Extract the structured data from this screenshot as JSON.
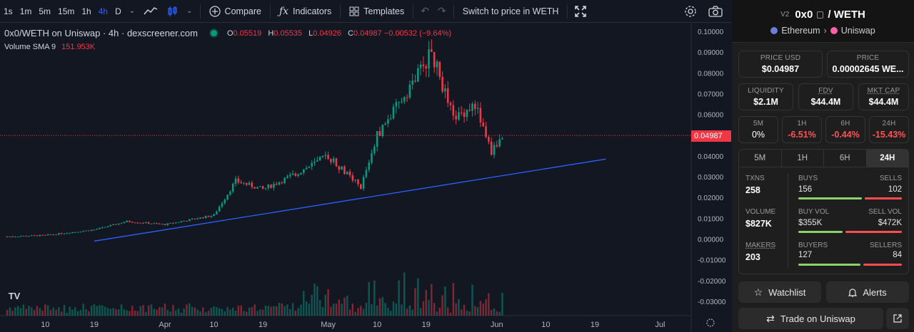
{
  "toolbar": {
    "timeframes": [
      "1s",
      "1m",
      "5m",
      "15m",
      "1h",
      "4h",
      "D"
    ],
    "active_timeframe": "4h",
    "compare_label": "Compare",
    "indicators_label": "Indicators",
    "templates_label": "Templates",
    "switch_label": "Switch to price in WETH"
  },
  "legend": {
    "title": "0x0/WETH on Uniswap · 4h · dexscreener.com",
    "o_key": "O",
    "o_val": "0.05519",
    "h_key": "H",
    "h_val": "0.05535",
    "l_key": "L",
    "l_val": "0.04926",
    "c_key": "C",
    "c_val": "0.04987 −0.00532 (−9.64%)",
    "volume_label": "Volume  SMA 9",
    "volume_value": "151.953K"
  },
  "chart_data": {
    "type": "candlestick",
    "y_axis_ticks": [
      "0.10000",
      "0.09000",
      "0.08000",
      "0.07000",
      "0.06000",
      "0.05000",
      "0.04000",
      "0.03000",
      "0.02000",
      "0.01000",
      "0.00000",
      "-0.01000",
      "-0.02000",
      "-0.03000"
    ],
    "x_axis_ticks": [
      "10",
      "19",
      "Apr",
      "10",
      "19",
      "May",
      "10",
      "19",
      "Jun",
      "10",
      "19",
      "Jul"
    ],
    "current_price": "0.04987",
    "ylim": [
      -0.03,
      0.1
    ],
    "price_path": [
      {
        "t": "Mar 3",
        "close": 0.0012
      },
      {
        "t": "Mar 10",
        "close": 0.0018
      },
      {
        "t": "Mar 19",
        "close": 0.0045
      },
      {
        "t": "Mar 25",
        "close": 0.0085
      },
      {
        "t": "Apr 1",
        "close": 0.007
      },
      {
        "t": "Apr 10",
        "close": 0.0115
      },
      {
        "t": "Apr 14",
        "close": 0.028
      },
      {
        "t": "Apr 19",
        "close": 0.024
      },
      {
        "t": "Apr 24",
        "close": 0.03
      },
      {
        "t": "May 1",
        "close": 0.04
      },
      {
        "t": "May 7",
        "close": 0.025
      },
      {
        "t": "May 10",
        "close": 0.05
      },
      {
        "t": "May 14",
        "close": 0.065
      },
      {
        "t": "May 20",
        "close": 0.09
      },
      {
        "t": "May 24",
        "close": 0.058
      },
      {
        "t": "May 28",
        "close": 0.065
      },
      {
        "t": "May 31",
        "close": 0.042
      },
      {
        "t": "Jun 2",
        "close": 0.04987
      }
    ],
    "trendline": {
      "from": {
        "t": "Mar 19",
        "price": -0.001
      },
      "to": {
        "t": "Jun 21",
        "price": 0.0385
      }
    }
  },
  "panel": {
    "version": "V2",
    "token": "0x0",
    "quote": "/ WETH",
    "chain": "Ethereum",
    "dex": "Uniswap",
    "price_usd_label": "PRICE USD",
    "price_usd": "$0.04987",
    "price_label": "PRICE",
    "price": "0.00002645 WE...",
    "liquidity_label": "LIQUIDITY",
    "liquidity": "$2.1M",
    "fdv_label": "FDV",
    "fdv": "$44.4M",
    "mktcap_label": "MKT CAP",
    "mktcap": "$44.4M",
    "changes": [
      {
        "label": "5M",
        "value": "0%",
        "neg": false
      },
      {
        "label": "1H",
        "value": "-6.51%",
        "neg": true
      },
      {
        "label": "6H",
        "value": "-0.44%",
        "neg": true
      },
      {
        "label": "24H",
        "value": "-15.43%",
        "neg": true
      }
    ],
    "tabs": [
      "5M",
      "1H",
      "6H",
      "24H"
    ],
    "active_tab": "24H",
    "txns_label": "TXNS",
    "txns": "258",
    "buys_label": "BUYS",
    "buys": "156",
    "sells_label": "SELLS",
    "sells": "102",
    "volume_label": "VOLUME",
    "volume": "$827K",
    "buyvol_label": "BUY VOL",
    "buyvol": "$355K",
    "sellvol_label": "SELL VOL",
    "sellvol": "$472K",
    "makers_label": "MAKERS",
    "makers": "203",
    "buyers_label": "BUYERS",
    "buyers": "127",
    "sellers_label": "SELLERS",
    "sellers": "84",
    "watchlist_label": "Watchlist",
    "alerts_label": "Alerts",
    "trade_label": "Trade on Uniswap"
  },
  "colors": {
    "up": "#089981",
    "down": "#f23645",
    "trendline": "#2962ff",
    "background": "#131722"
  }
}
